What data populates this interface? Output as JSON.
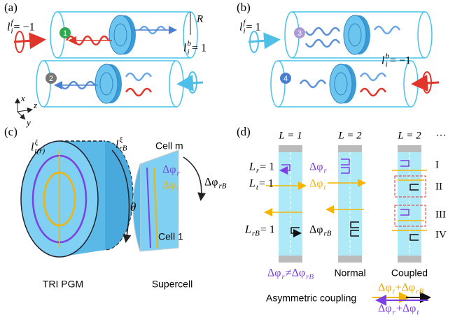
{
  "panel_a": {
    "label": "(a)",
    "l_f": [
      {
        "t": "l",
        "sub": "i",
        "sup": "f"
      },
      {
        "t": " = −1"
      }
    ],
    "radius": "R",
    "l_b": [
      {
        "t": "l",
        "sub": "i",
        "sup": "b"
      },
      {
        "t": " = 1"
      }
    ],
    "channel_1": "1",
    "channel_2": "2",
    "axis_x": "x",
    "axis_z": "z",
    "axis_y": "y"
  },
  "panel_b": {
    "label": "(b)",
    "l_f": [
      {
        "t": "l",
        "sub": "i",
        "sup": "f"
      },
      {
        "t": " = 1"
      }
    ],
    "l_b": [
      {
        "t": "l",
        "sub": "i",
        "sup": "b"
      },
      {
        "t": " = −1"
      }
    ],
    "channel_3": "3",
    "channel_4": "4"
  },
  "panel_c": {
    "label": "(c)",
    "l_tr": [
      {
        "t": "l",
        "sub": "t(r)",
        "sup": "ξ"
      }
    ],
    "l_rb": [
      {
        "t": "l",
        "sub": "rB",
        "sup": "ξ"
      }
    ],
    "cell_m": "Cell m",
    "dphi_r": [
      {
        "t": "Δφ",
        "sub": "r"
      }
    ],
    "dphi_t": [
      {
        "t": "Δφ",
        "sub": "t"
      }
    ],
    "dphi_rb": [
      {
        "t": "Δφ",
        "sub": "rB"
      }
    ],
    "theta": "θ",
    "cell_1": "Cell 1",
    "caption_left": "TRI PGM",
    "caption_right": "Supercell"
  },
  "panel_d": {
    "label": "(d)",
    "col_1": "L = 1",
    "col_2": "L = 2",
    "col_3": "L = 2",
    "more": "···",
    "l_r": [
      {
        "t": "L",
        "sub": "r"
      },
      {
        "t": " = 1"
      }
    ],
    "l_t": [
      {
        "t": "L",
        "sub": "t"
      },
      {
        "t": " = 1"
      }
    ],
    "l_rb": [
      {
        "t": "L",
        "sub": "rB"
      },
      {
        "t": " = 1"
      }
    ],
    "dphi_r": [
      {
        "t": "Δφ",
        "sub": "r"
      }
    ],
    "dphi_t": [
      {
        "t": "Δφ",
        "sub": "t"
      }
    ],
    "dphi_rb": [
      {
        "t": "Δφ",
        "sub": "rB"
      }
    ],
    "rows": [
      "I",
      "II",
      "III",
      "IV"
    ],
    "caption_1": [
      {
        "t": "Δφ",
        "sub": "r"
      },
      {
        "t": " ≠ "
      },
      {
        "t": "Δφ",
        "sub": "rB"
      }
    ],
    "caption_2": "Normal",
    "caption_3": "Coupled",
    "asym": "Asymmetric coupling",
    "sum_top": [
      {
        "t": "Δφ",
        "sub": "t"
      },
      {
        "t": " + "
      },
      {
        "t": "Δφ",
        "sub": "rB"
      }
    ],
    "sum_bottom": [
      {
        "t": "Δφ",
        "sub": "r"
      },
      {
        "t": " + "
      },
      {
        "t": "Δφ",
        "sub": "t"
      }
    ]
  }
}
